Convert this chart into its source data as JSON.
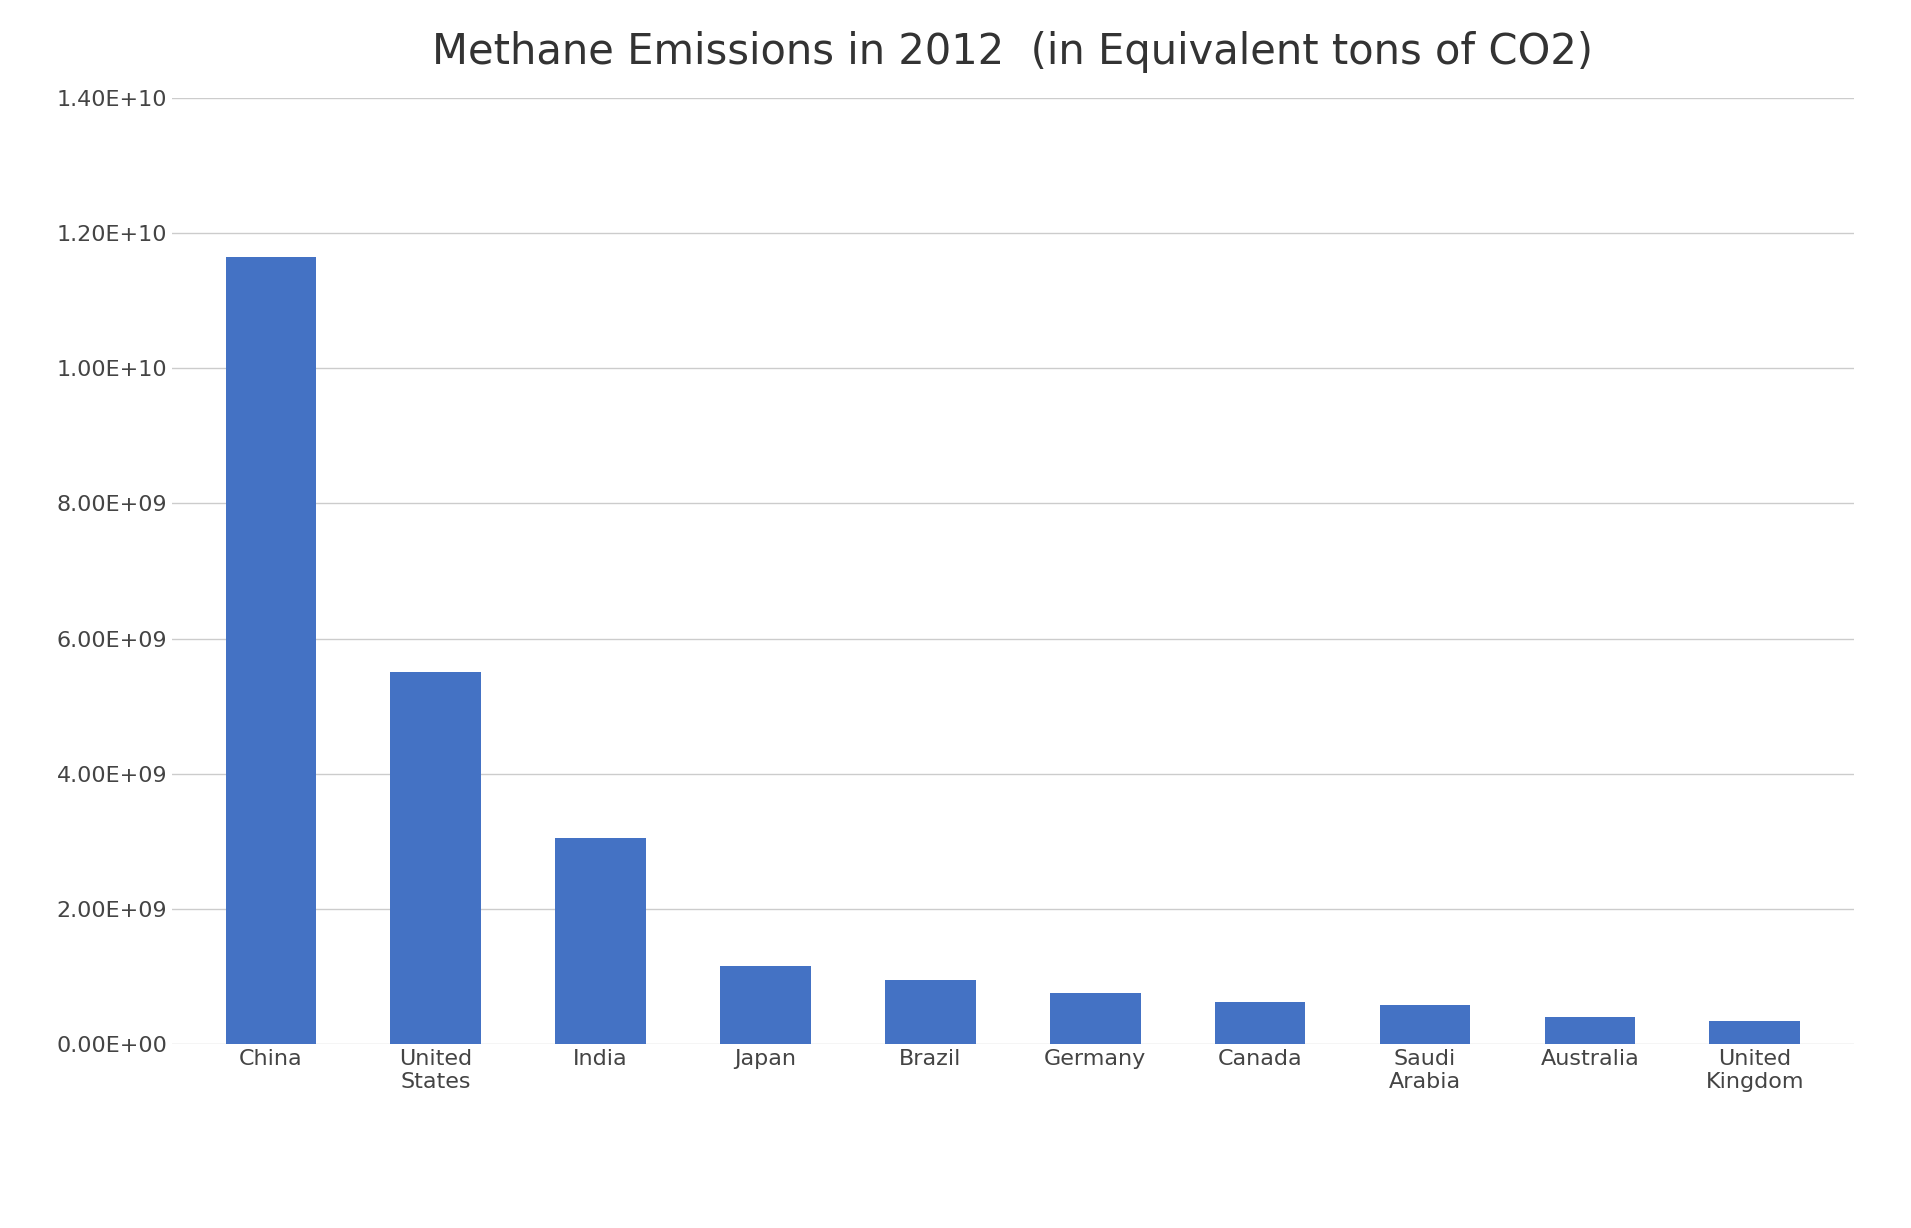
{
  "title": "Methane Emissions in 2012  (in Equivalent tons of CO2)",
  "categories": [
    "China",
    "United\nStates",
    "India",
    "Japan",
    "Brazil",
    "Germany",
    "Canada",
    "Saudi\nArabia",
    "Australia",
    "United\nKingdom"
  ],
  "values": [
    11650000000.0,
    5500000000.0,
    3050000000.0,
    1150000000.0,
    950000000.0,
    750000000.0,
    620000000.0,
    580000000.0,
    400000000.0,
    340000000.0
  ],
  "bar_color": "#4472C4",
  "ylim": [
    0,
    14000000000.0
  ],
  "yticks": [
    0,
    2000000000.0,
    4000000000.0,
    6000000000.0,
    8000000000.0,
    10000000000.0,
    12000000000.0,
    14000000000.0
  ],
  "background_color": "#ffffff",
  "grid_color": "#cccccc",
  "title_fontsize": 30,
  "tick_fontsize": 16,
  "bar_width": 0.55
}
